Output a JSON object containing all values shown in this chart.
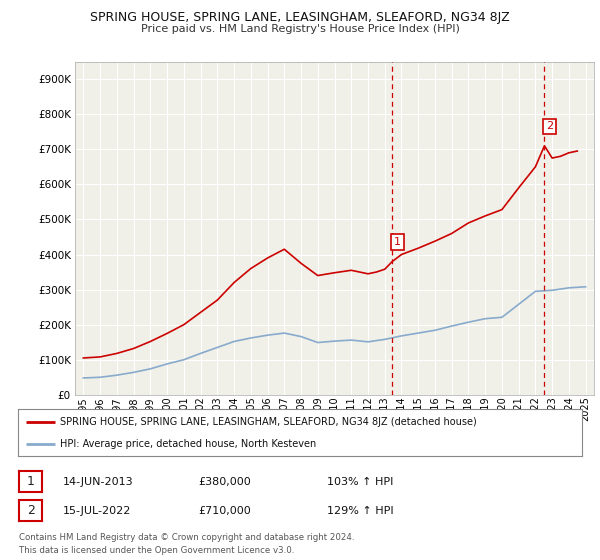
{
  "title": "SPRING HOUSE, SPRING LANE, LEASINGHAM, SLEAFORD, NG34 8JZ",
  "subtitle": "Price paid vs. HM Land Registry's House Price Index (HPI)",
  "ytick_values": [
    0,
    100000,
    200000,
    300000,
    400000,
    500000,
    600000,
    700000,
    800000,
    900000
  ],
  "hpi_x": [
    1995,
    1996,
    1997,
    1998,
    1999,
    2000,
    2001,
    2002,
    2003,
    2004,
    2005,
    2006,
    2007,
    2008,
    2009,
    2010,
    2011,
    2012,
    2013,
    2014,
    2015,
    2016,
    2017,
    2018,
    2019,
    2020,
    2021,
    2022,
    2023,
    2024,
    2025
  ],
  "hpi_y": [
    48000,
    50000,
    56000,
    64000,
    74000,
    88000,
    100000,
    118000,
    135000,
    152000,
    162000,
    170000,
    176000,
    166000,
    149000,
    153000,
    156000,
    151000,
    158000,
    168000,
    176000,
    184000,
    196000,
    207000,
    217000,
    221000,
    258000,
    295000,
    298000,
    305000,
    308000
  ],
  "property_x": [
    1995,
    1996,
    1997,
    1998,
    1999,
    2000,
    2001,
    2002,
    2003,
    2004,
    2005,
    2006,
    2007,
    2008,
    2009,
    2010,
    2011,
    2012,
    2012.5,
    2013,
    2013.45,
    2014,
    2015,
    2016,
    2017,
    2018,
    2019,
    2020,
    2021,
    2022,
    2022.54,
    2023,
    2023.5,
    2024,
    2024.5
  ],
  "property_y": [
    105000,
    108000,
    118000,
    132000,
    152000,
    175000,
    200000,
    235000,
    270000,
    320000,
    360000,
    390000,
    415000,
    375000,
    340000,
    348000,
    355000,
    345000,
    350000,
    358000,
    380000,
    400000,
    418000,
    438000,
    460000,
    490000,
    510000,
    528000,
    590000,
    650000,
    710000,
    675000,
    680000,
    690000,
    695000
  ],
  "sale1_x": 2013.45,
  "sale1_y": 380000,
  "sale1_label": "1",
  "sale2_x": 2022.54,
  "sale2_y": 710000,
  "sale2_label": "2",
  "vline1_x": 2013.45,
  "vline2_x": 2022.54,
  "property_color": "#cc0000",
  "hpi_color": "#88aacc",
  "vline_color": "#cc0000",
  "chart_bg": "#f0f0e8",
  "legend_line1": "SPRING HOUSE, SPRING LANE, LEASINGHAM, SLEAFORD, NG34 8JZ (detached house)",
  "legend_line2": "HPI: Average price, detached house, North Kesteven",
  "table_row1": [
    "1",
    "14-JUN-2013",
    "£380,000",
    "103% ↑ HPI"
  ],
  "table_row2": [
    "2",
    "15-JUL-2022",
    "£710,000",
    "129% ↑ HPI"
  ],
  "footnote": "Contains HM Land Registry data © Crown copyright and database right 2024.\nThis data is licensed under the Open Government Licence v3.0.",
  "xlim": [
    1994.5,
    2025.5
  ],
  "ylim": [
    0,
    950000
  ]
}
